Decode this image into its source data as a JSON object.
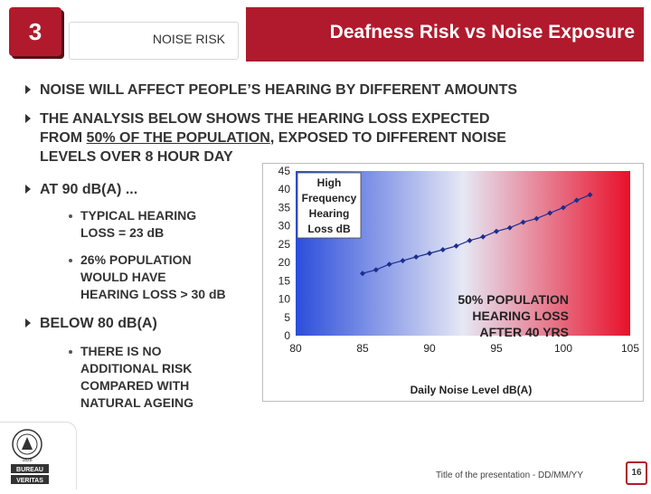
{
  "header": {
    "slide_number": "3",
    "section": "NOISE RISK",
    "title": "Deafness Risk vs Noise Exposure"
  },
  "bullets": {
    "b1": "NOISE WILL AFFECT PEOPLE’S HEARING BY DIFFERENT AMOUNTS",
    "b2_line1": "THE ANALYSIS BELOW SHOWS THE HEARING LOSS EXPECTED",
    "b2_line2_pre": "FROM ",
    "b2_line2_under": "50% OF THE POPULATION",
    "b2_line2_post": ", EXPOSED TO DIFFERENT NOISE",
    "b2_line3": "LEVELS OVER 8 HOUR DAY",
    "b3": "AT 90 dB(A) ...",
    "b3_sub1_line1": "TYPICAL HEARING",
    "b3_sub1_line2": "LOSS = 23 dB",
    "b3_sub2_line1": "26% POPULATION",
    "b3_sub2_line2": "WOULD HAVE",
    "b3_sub2_line3": "HEARING LOSS > 30 dB",
    "b4": "BELOW 80 dB(A)",
    "b4_sub1_line1": "THERE IS NO",
    "b4_sub1_line2": "ADDITIONAL RISK",
    "b4_sub1_line3": "COMPARED WITH",
    "b4_sub1_line4": "NATURAL AGEING"
  },
  "chart_data": {
    "type": "line",
    "title": "",
    "xlabel": "Daily Noise Level dB(A)",
    "ylabel": "",
    "xlim": [
      80,
      105
    ],
    "ylim": [
      0,
      45
    ],
    "x_ticks": [
      "80",
      "85",
      "90",
      "95",
      "100",
      "105"
    ],
    "y_ticks": [
      "0",
      "5",
      "10",
      "15",
      "20",
      "25",
      "30",
      "35",
      "40",
      "45"
    ],
    "series": [
      {
        "name": "High Frequency Hearing Loss dB",
        "x": [
          85,
          86,
          87,
          88,
          89,
          90,
          91,
          92,
          93,
          94,
          95,
          96,
          97,
          98,
          99,
          100,
          101,
          102
        ],
        "y": [
          17,
          18,
          19.5,
          20.5,
          21.5,
          22.5,
          23.5,
          24.5,
          26,
          27,
          28.5,
          29.5,
          31,
          32,
          33.5,
          35,
          37,
          38.5
        ]
      }
    ],
    "legend_line1": "High",
    "legend_line2": "Frequency",
    "legend_line3": "Hearing",
    "legend_line4": "Loss dB",
    "annotation_line1": "50% POPULATION",
    "annotation_line2": "HEARING LOSS",
    "annotation_line3": "AFTER 40 YRS",
    "colors": {
      "low": "#2b4ddb",
      "high": "#e8102a",
      "line": "#1d2d8f"
    }
  },
  "footer": {
    "presentation_title": "Title of the presentation - DD/MM/YY",
    "page_number": "16",
    "logo_line1": "BUREAU",
    "logo_line2": "VERITAS",
    "logo_year": "1828"
  }
}
